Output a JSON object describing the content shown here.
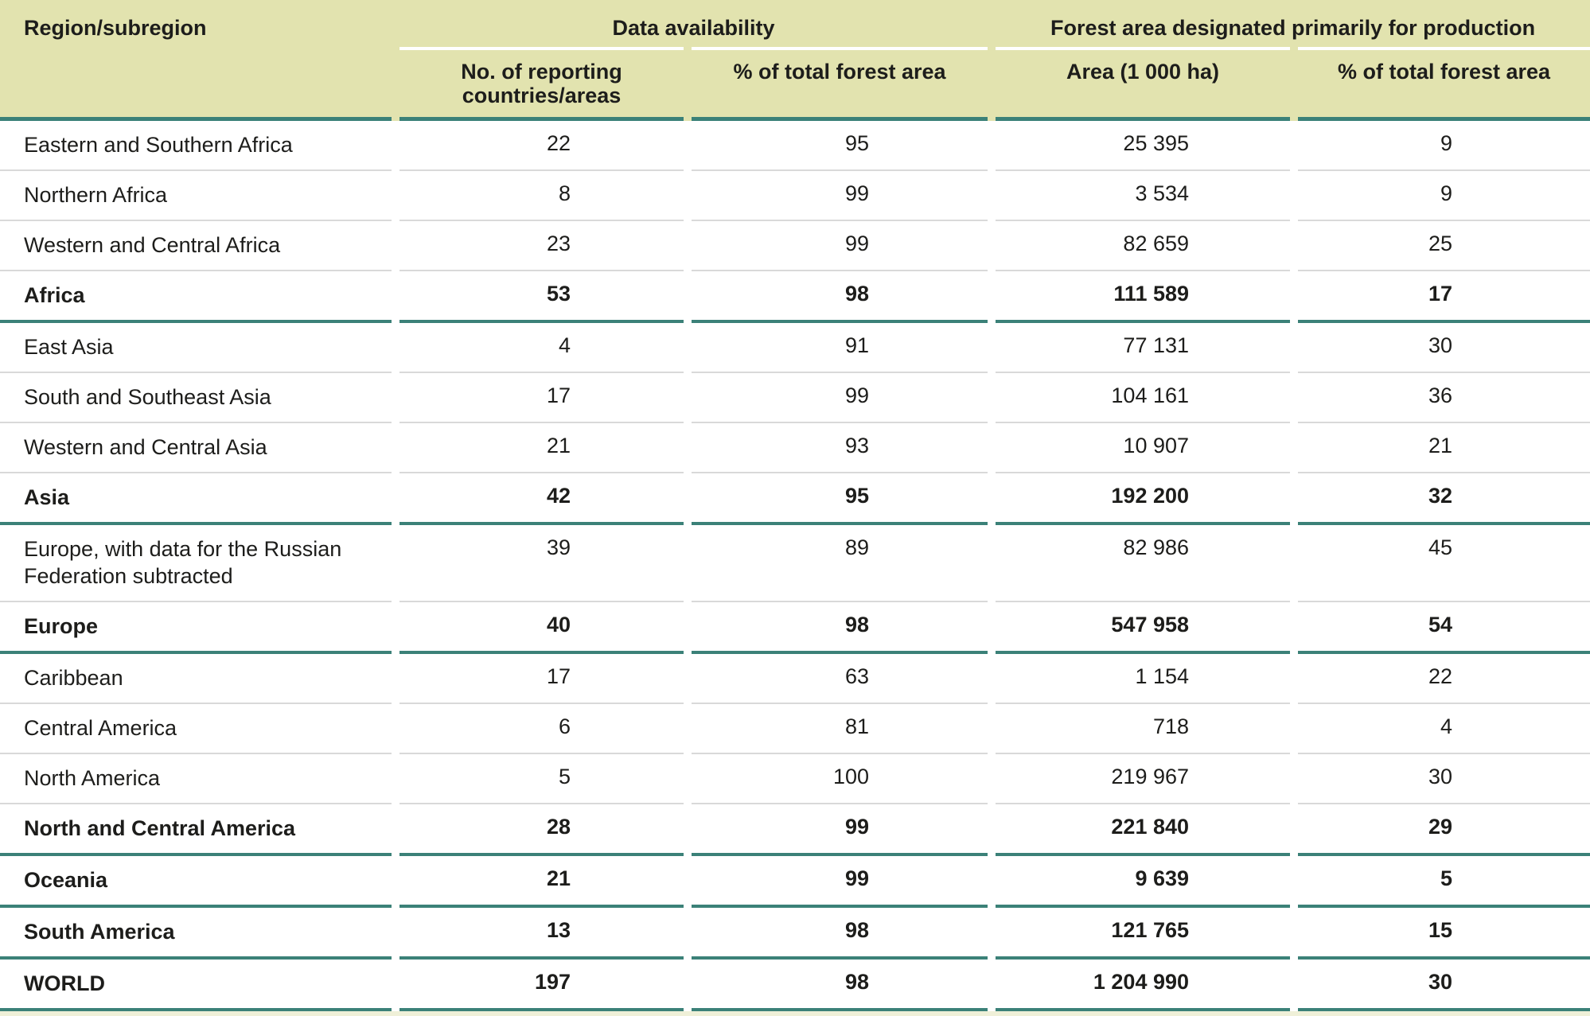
{
  "colors": {
    "header_bg": "#e2e3af",
    "rule_teal": "#3b8178",
    "rule_thin": "#d9d9d9",
    "text": "#1d1d1b",
    "bottom_strip": "#eff0d8"
  },
  "table": {
    "header": {
      "region": "Region/subregion",
      "groups": [
        {
          "label": "Data availability",
          "subcolumns": [
            "No. of reporting\ncountries/areas",
            "% of total forest area"
          ]
        },
        {
          "label": "Forest area designated primarily for production",
          "subcolumns": [
            "Area (1 000 ha)",
            "% of total forest area"
          ]
        }
      ]
    },
    "rows": [
      {
        "region": "Eastern and Southern Africa",
        "values": [
          "22",
          "95",
          "25 395",
          "9"
        ],
        "bold": false,
        "separator": "thin"
      },
      {
        "region": "Northern Africa",
        "values": [
          "8",
          "99",
          "3 534",
          "9"
        ],
        "bold": false,
        "separator": "thin"
      },
      {
        "region": "Western and Central Africa",
        "values": [
          "23",
          "99",
          "82 659",
          "25"
        ],
        "bold": false,
        "separator": "thin"
      },
      {
        "region": "Africa",
        "values": [
          "53",
          "98",
          "111 589",
          "17"
        ],
        "bold": true,
        "separator": "teal"
      },
      {
        "region": "East Asia",
        "values": [
          "4",
          "91",
          "77 131",
          "30"
        ],
        "bold": false,
        "separator": "thin"
      },
      {
        "region": "South and Southeast Asia",
        "values": [
          "17",
          "99",
          "104 161",
          "36"
        ],
        "bold": false,
        "separator": "thin"
      },
      {
        "region": "Western and Central Asia",
        "values": [
          "21",
          "93",
          "10 907",
          "21"
        ],
        "bold": false,
        "separator": "thin"
      },
      {
        "region": "Asia",
        "values": [
          "42",
          "95",
          "192 200",
          "32"
        ],
        "bold": true,
        "separator": "teal"
      },
      {
        "region": "Europe, with data for the Russian\nFederation subtracted",
        "values": [
          "39",
          "89",
          "82 986",
          "45"
        ],
        "bold": false,
        "separator": "thin"
      },
      {
        "region": "Europe",
        "values": [
          "40",
          "98",
          "547 958",
          "54"
        ],
        "bold": true,
        "separator": "teal"
      },
      {
        "region": "Caribbean",
        "values": [
          "17",
          "63",
          "1 154",
          "22"
        ],
        "bold": false,
        "separator": "thin"
      },
      {
        "region": "Central America",
        "values": [
          "6",
          "81",
          "718",
          "4"
        ],
        "bold": false,
        "separator": "thin"
      },
      {
        "region": "North America",
        "values": [
          "5",
          "100",
          "219 967",
          "30"
        ],
        "bold": false,
        "separator": "thin"
      },
      {
        "region": "North and Central America",
        "values": [
          "28",
          "99",
          "221 840",
          "29"
        ],
        "bold": true,
        "separator": "teal"
      },
      {
        "region": "Oceania",
        "values": [
          "21",
          "99",
          "9 639",
          "5"
        ],
        "bold": true,
        "separator": "teal"
      },
      {
        "region": "South America",
        "values": [
          "13",
          "98",
          "121 765",
          "15"
        ],
        "bold": true,
        "separator": "teal"
      },
      {
        "region": "WORLD",
        "values": [
          "197",
          "98",
          "1 204 990",
          "30"
        ],
        "bold": true,
        "separator": "teal"
      }
    ]
  }
}
